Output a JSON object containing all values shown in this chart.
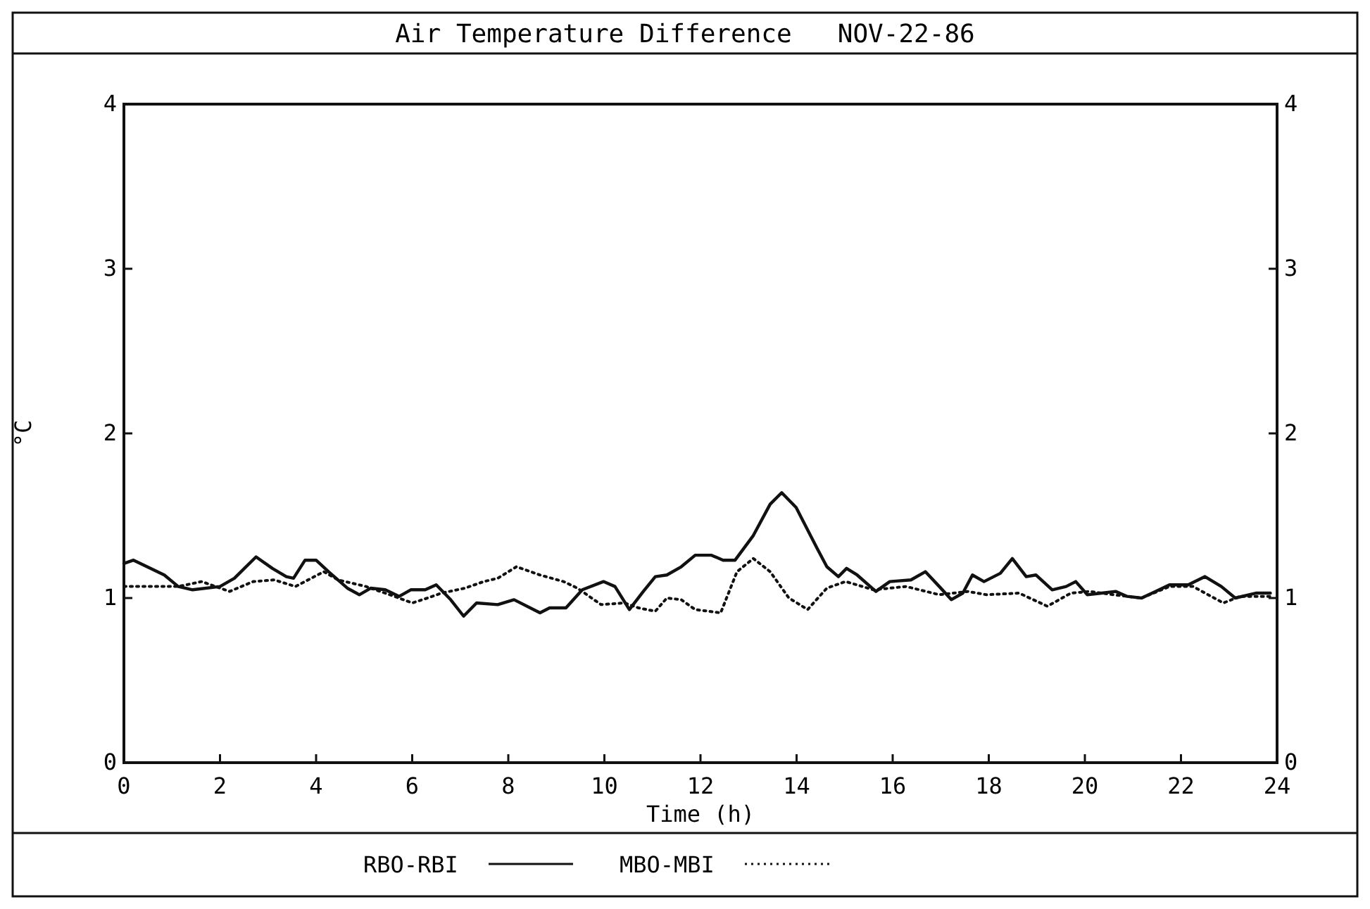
{
  "chart_data": {
    "type": "line",
    "title": "Air Temperature Difference   NOV-22-86",
    "xlabel": "Time (h)",
    "ylabel": "°C",
    "xlim": [
      0,
      24
    ],
    "xticks": [
      0,
      2,
      4,
      6,
      8,
      10,
      12,
      14,
      16,
      18,
      20,
      22,
      24
    ],
    "ylim": [
      0,
      4
    ],
    "yticks": [
      0,
      1,
      2,
      3,
      4
    ],
    "y2lim": [
      0,
      4
    ],
    "y2ticks": [
      0,
      1,
      2,
      3,
      4
    ],
    "grid": false,
    "legend": "bottom",
    "marker": "none",
    "series": [
      {
        "name": "RBO-RBI",
        "color": "#111111",
        "line_style": "solid",
        "x": [
          0,
          0.2,
          0.84,
          1.13,
          1.43,
          2.0,
          2.3,
          2.75,
          3.09,
          3.38,
          3.53,
          3.77,
          4.0,
          4.26,
          4.65,
          4.9,
          5.14,
          5.44,
          5.73,
          5.97,
          6.27,
          6.5,
          6.8,
          7.07,
          7.34,
          7.78,
          8.12,
          8.66,
          8.86,
          9.2,
          9.54,
          9.98,
          10.22,
          10.52,
          10.81,
          11.06,
          11.3,
          11.6,
          11.89,
          12.23,
          12.47,
          12.72,
          13.1,
          13.45,
          13.69,
          13.99,
          14.43,
          14.63,
          14.87,
          15.04,
          15.26,
          15.65,
          15.94,
          16.38,
          16.68,
          16.97,
          17.22,
          17.46,
          17.66,
          17.9,
          18.24,
          18.49,
          18.78,
          18.98,
          19.32,
          19.61,
          19.81,
          20.05,
          20.35,
          20.64,
          20.88,
          21.18,
          21.47,
          21.76,
          22.15,
          22.5,
          22.84,
          23.13,
          23.57,
          23.86
        ],
        "values": [
          1.21,
          1.23,
          1.14,
          1.07,
          1.05,
          1.07,
          1.12,
          1.25,
          1.18,
          1.13,
          1.12,
          1.23,
          1.23,
          1.16,
          1.06,
          1.02,
          1.06,
          1.05,
          1.01,
          1.05,
          1.05,
          1.08,
          0.99,
          0.89,
          0.97,
          0.96,
          0.99,
          0.91,
          0.94,
          0.94,
          1.05,
          1.1,
          1.07,
          0.93,
          1.04,
          1.13,
          1.14,
          1.19,
          1.26,
          1.26,
          1.23,
          1.23,
          1.38,
          1.57,
          1.64,
          1.55,
          1.3,
          1.19,
          1.13,
          1.18,
          1.14,
          1.04,
          1.1,
          1.11,
          1.16,
          1.07,
          0.99,
          1.03,
          1.14,
          1.1,
          1.15,
          1.24,
          1.13,
          1.14,
          1.05,
          1.07,
          1.1,
          1.02,
          1.03,
          1.04,
          1.01,
          1.0,
          1.04,
          1.08,
          1.08,
          1.13,
          1.07,
          1.0,
          1.03,
          1.03
        ]
      },
      {
        "name": "MBO-MBI",
        "color": "#111111",
        "line_style": "dotted",
        "x": [
          0,
          1.13,
          1.62,
          1.91,
          2.2,
          2.69,
          3.13,
          3.57,
          4.16,
          4.46,
          5.04,
          5.63,
          6.0,
          6.32,
          6.61,
          7.1,
          7.49,
          7.78,
          8.17,
          8.66,
          9.15,
          9.44,
          9.93,
          10.42,
          10.71,
          11.06,
          11.3,
          11.6,
          11.89,
          12.42,
          12.76,
          13.1,
          13.45,
          13.84,
          14.23,
          14.63,
          15.02,
          15.6,
          16.28,
          16.97,
          17.56,
          17.95,
          18.63,
          19.22,
          19.71,
          20.1,
          20.59,
          21.18,
          21.76,
          22.25,
          22.88,
          23.23,
          23.86
        ],
        "values": [
          1.07,
          1.07,
          1.1,
          1.07,
          1.04,
          1.1,
          1.11,
          1.07,
          1.16,
          1.11,
          1.07,
          1.01,
          0.97,
          1.0,
          1.03,
          1.06,
          1.1,
          1.12,
          1.19,
          1.14,
          1.1,
          1.06,
          0.96,
          0.97,
          0.94,
          0.92,
          1.0,
          0.99,
          0.93,
          0.91,
          1.16,
          1.24,
          1.16,
          1.0,
          0.93,
          1.06,
          1.1,
          1.05,
          1.07,
          1.02,
          1.04,
          1.02,
          1.03,
          0.95,
          1.03,
          1.04,
          1.02,
          1.0,
          1.07,
          1.07,
          0.97,
          1.01,
          1.01
        ]
      }
    ]
  }
}
